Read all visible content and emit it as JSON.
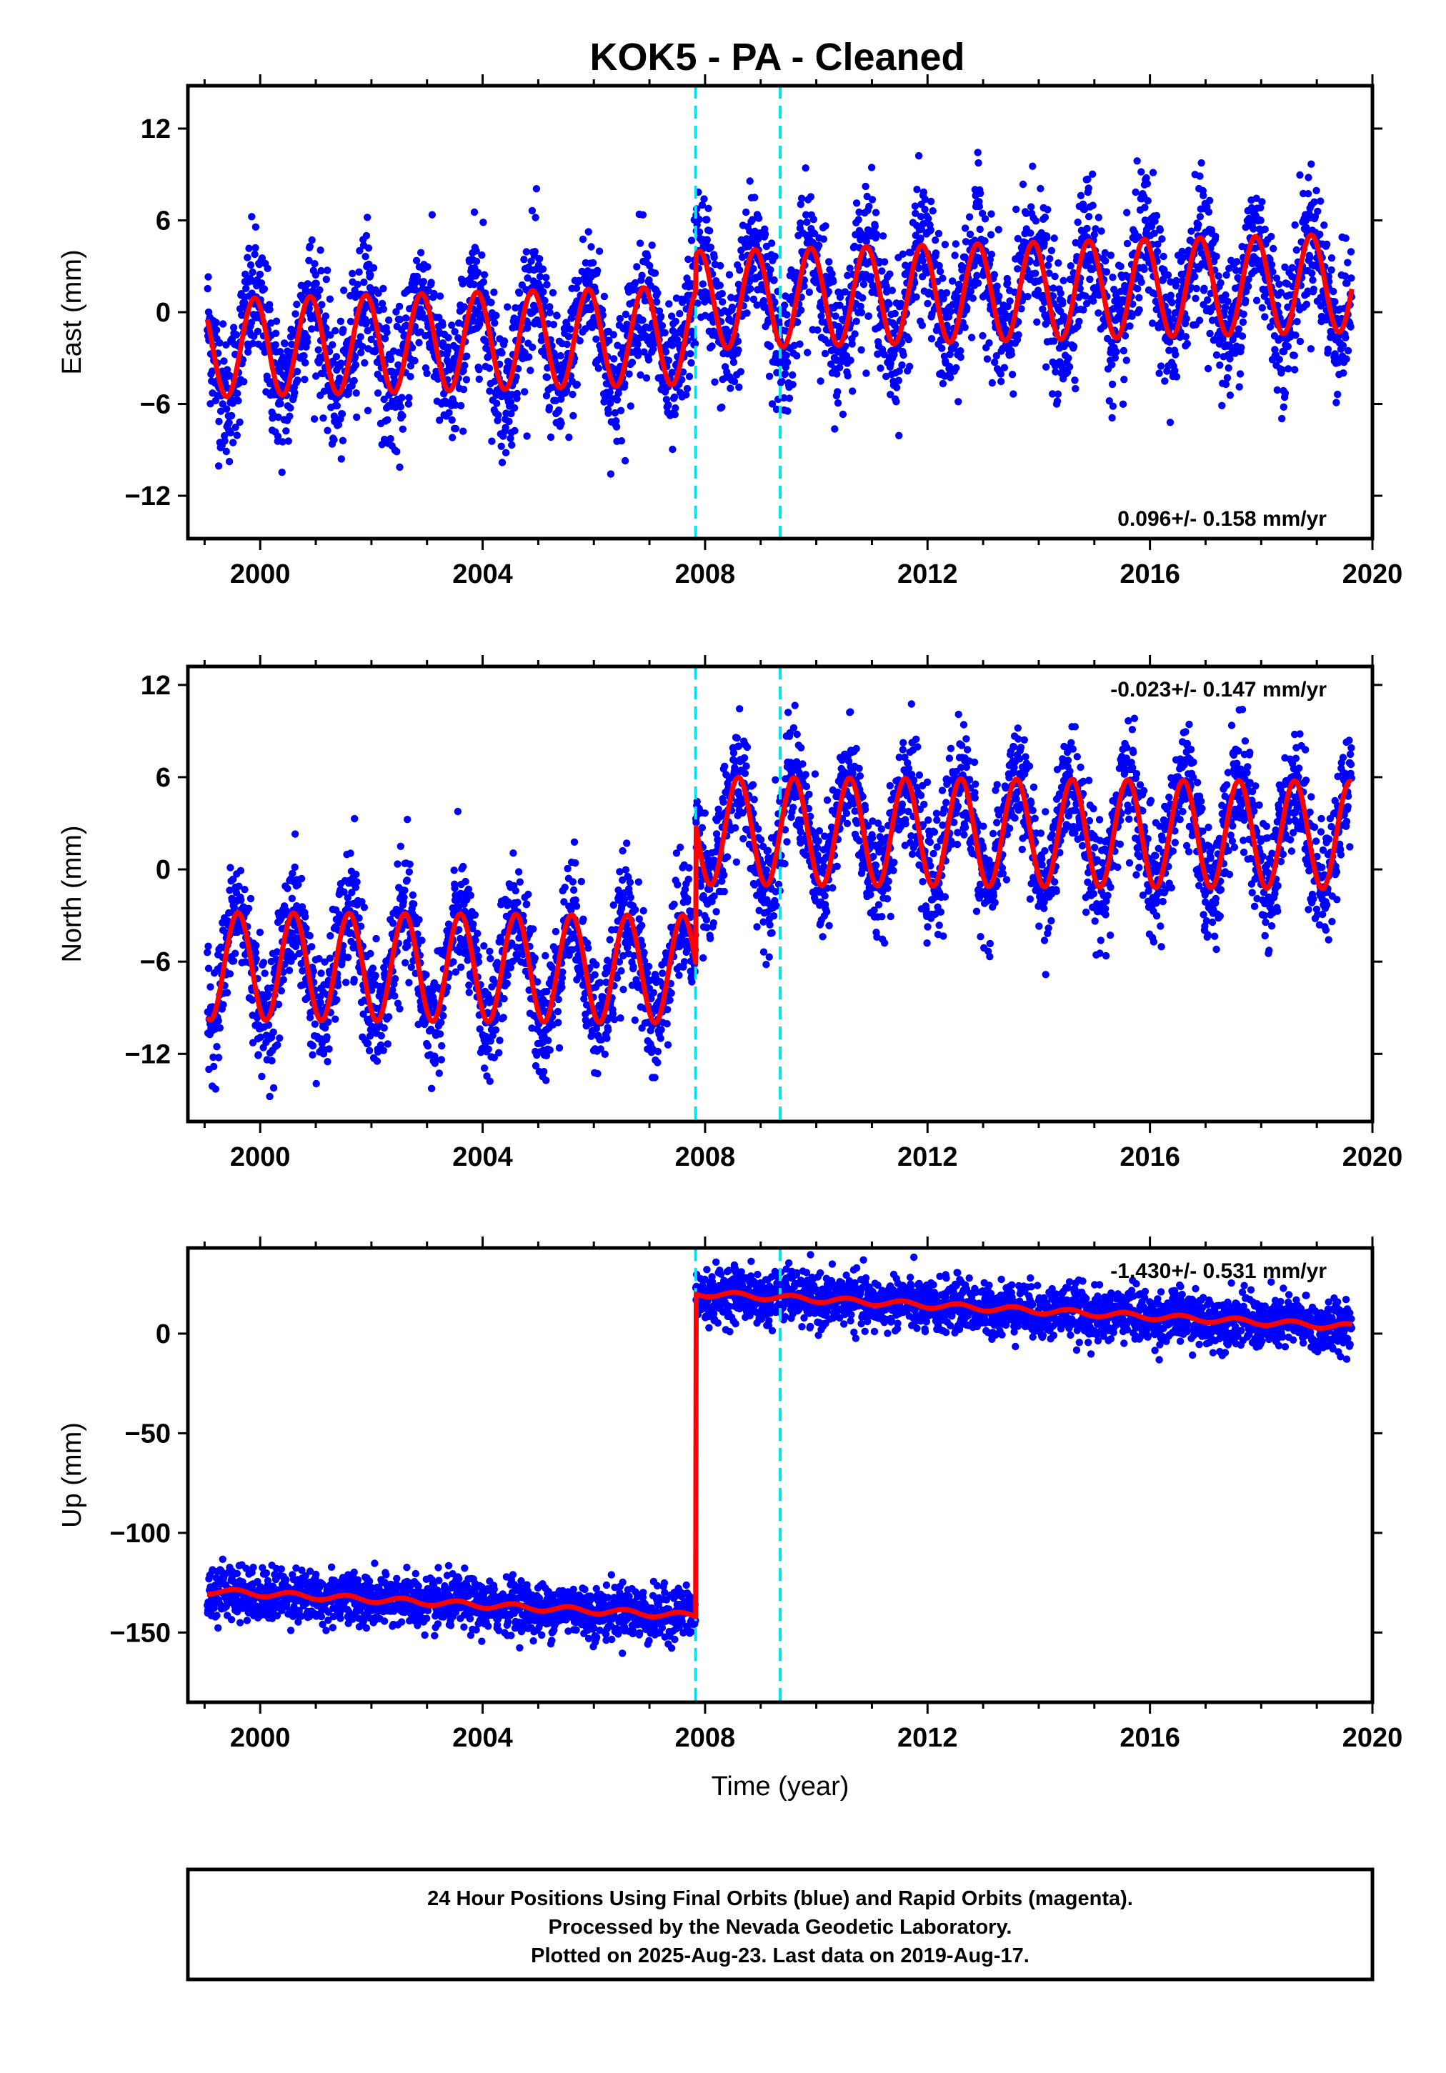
{
  "title": "KOK5  - PA - Cleaned",
  "footer": {
    "line1": "24 Hour Positions Using Final Orbits (blue) and Rapid Orbits (magenta).",
    "line2": "Processed by the Nevada Geodetic Laboratory.",
    "line3": "Plotted on 2025-Aug-23. Last data on 2019-Aug-17."
  },
  "colors": {
    "data": "#0000ff",
    "model": "#ff0000",
    "events": "#00e5ee",
    "frame": "#000000"
  },
  "chart_data": [
    {
      "type": "scatter",
      "ylabel": "East (mm)",
      "xlim": [
        1998.7,
        2020.0
      ],
      "ylim": [
        -14.8,
        14.8
      ],
      "yticks": [
        12,
        6,
        0,
        -6,
        -12
      ],
      "xticks": [
        2000,
        2004,
        2008,
        2012,
        2016,
        2020
      ],
      "rate_label": "0.096+/- 0.158 mm/yr",
      "event_lines": [
        2007.83,
        2009.35
      ],
      "model": {
        "offset_before": -1.5,
        "offset_after": 0.8,
        "trend_mm_per_yr": 0.096,
        "annual_amplitude": 3.2,
        "annual_peak": 0.9,
        "step_at": 2007.83
      },
      "observations": {
        "x_start": 1999.05,
        "x_end": 2019.63,
        "scatter_sd": 2.2
      }
    },
    {
      "type": "scatter",
      "ylabel": "North (mm)",
      "xlim": [
        1998.7,
        2020.0
      ],
      "ylim": [
        -16.4,
        13.2
      ],
      "yticks": [
        12,
        6,
        0,
        -6,
        -12
      ],
      "xticks": [
        2000,
        2004,
        2008,
        2012,
        2016,
        2020
      ],
      "rate_label": "-0.023+/- 0.147 mm/yr",
      "event_lines": [
        2007.83,
        2009.35
      ],
      "model": {
        "offset_before": -6.5,
        "offset_after": 2.5,
        "trend_mm_per_yr": -0.023,
        "annual_amplitude": 3.5,
        "annual_peak": 0.6,
        "step_at": 2007.83
      },
      "observations": {
        "x_start": 1999.05,
        "x_end": 2019.63,
        "scatter_sd": 1.9
      }
    },
    {
      "type": "scatter",
      "ylabel": "Up (mm)",
      "xlabel": "Time (year)",
      "xlim": [
        1998.7,
        2020.0
      ],
      "ylim": [
        -185,
        43
      ],
      "yticks": [
        0,
        -50,
        -100,
        -150
      ],
      "xticks": [
        2000,
        2004,
        2008,
        2012,
        2016,
        2020
      ],
      "rate_label": "-1.430+/- 0.531 mm/yr",
      "event_lines": [
        2007.83,
        2009.35
      ],
      "model": {
        "offset_before": -142,
        "offset_after": 20,
        "trend_mm_per_yr": -1.43,
        "annual_amplitude": 1.5,
        "annual_peak": 0.55,
        "step_at": 2007.83
      },
      "observations": {
        "x_start": 1999.05,
        "x_end": 2019.63,
        "scatter_sd": 6.5
      }
    }
  ]
}
